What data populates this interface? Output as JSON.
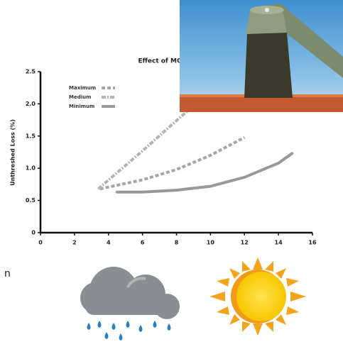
{
  "fragment_text": "n",
  "chart_data": {
    "type": "line",
    "title": "Effect of MC",
    "y_label": "Unthreshed Loss (%)",
    "xlim": [
      0,
      16
    ],
    "xticks": [
      0,
      2,
      4,
      6,
      8,
      10,
      12,
      14,
      16
    ],
    "ylim": [
      0,
      2.5
    ],
    "yticks": [
      0,
      0.5,
      {
        "value": 1,
        "label": "1.0"
      },
      1.5,
      {
        "value": 2,
        "label": "2.0"
      },
      2.5
    ],
    "series": [
      {
        "name": "Maximum",
        "color": "#a6a6a6",
        "style": "dashed",
        "x": [
          3.5,
          6,
          8,
          10,
          12
        ],
        "values": [
          0.68,
          0.82,
          0.98,
          1.2,
          1.48
        ]
      },
      {
        "name": "Medium",
        "color": "#b3b3b3",
        "style": "dash-dot",
        "x": [
          3.4,
          6,
          8,
          10
        ],
        "values": [
          0.68,
          1.27,
          1.74,
          2.2
        ]
      },
      {
        "name": "Minimum",
        "color": "#999999",
        "style": "solid",
        "x": [
          4.5,
          6,
          8,
          10,
          12,
          14,
          14.8
        ],
        "values": [
          0.63,
          0.63,
          0.66,
          0.72,
          0.86,
          1.08,
          1.23
        ]
      }
    ]
  }
}
